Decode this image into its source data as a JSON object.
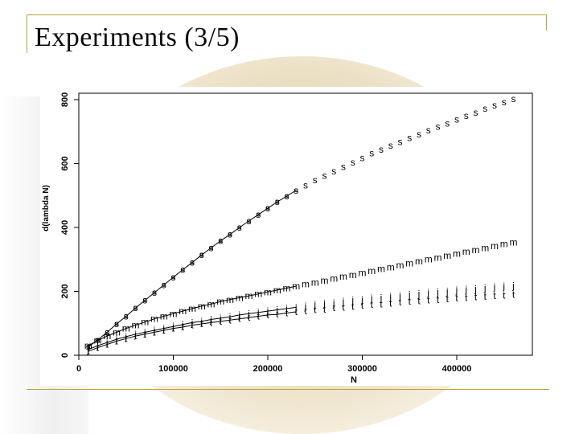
{
  "slide": {
    "title": "Experiments (3/5)"
  },
  "chart_data": {
    "type": "line",
    "xlabel": "N",
    "ylabel": "d(lambda N)",
    "xlim": [
      0,
      480000
    ],
    "ylim": [
      0,
      820
    ],
    "x_ticks": [
      "0",
      "100000",
      "200000",
      "300000",
      "400000"
    ],
    "y_ticks": [
      "0",
      "200",
      "400",
      "600",
      "800"
    ],
    "series": [
      {
        "name": "s",
        "marker_label": "s",
        "points": [
          [
            10000,
            26
          ],
          [
            20000,
            48
          ],
          [
            30000,
            72
          ],
          [
            40000,
            98
          ],
          [
            50000,
            122
          ],
          [
            60000,
            148
          ],
          [
            70000,
            172
          ],
          [
            80000,
            196
          ],
          [
            90000,
            220
          ],
          [
            100000,
            244
          ],
          [
            110000,
            268
          ],
          [
            120000,
            290
          ],
          [
            130000,
            314
          ],
          [
            140000,
            336
          ],
          [
            150000,
            358
          ],
          [
            160000,
            378
          ],
          [
            170000,
            400
          ],
          [
            180000,
            420
          ],
          [
            190000,
            440
          ],
          [
            200000,
            460
          ],
          [
            210000,
            480
          ],
          [
            220000,
            498
          ],
          [
            230000,
            516
          ],
          [
            240000,
            532
          ],
          [
            250000,
            548
          ],
          [
            260000,
            562
          ],
          [
            270000,
            576
          ],
          [
            280000,
            590
          ],
          [
            290000,
            604
          ],
          [
            300000,
            618
          ],
          [
            310000,
            632
          ],
          [
            320000,
            644
          ],
          [
            330000,
            656
          ],
          [
            340000,
            668
          ],
          [
            350000,
            680
          ],
          [
            360000,
            692
          ],
          [
            370000,
            704
          ],
          [
            380000,
            716
          ],
          [
            390000,
            726
          ],
          [
            400000,
            738
          ],
          [
            410000,
            750
          ],
          [
            420000,
            760
          ],
          [
            430000,
            772
          ],
          [
            440000,
            782
          ],
          [
            450000,
            792
          ],
          [
            460000,
            802
          ]
        ]
      },
      {
        "name": "m",
        "marker_label": "m",
        "points": [
          [
            10000,
            30
          ],
          [
            20000,
            46
          ],
          [
            30000,
            60
          ],
          [
            40000,
            72
          ],
          [
            50000,
            84
          ],
          [
            60000,
            94
          ],
          [
            70000,
            104
          ],
          [
            80000,
            114
          ],
          [
            90000,
            122
          ],
          [
            100000,
            130
          ],
          [
            110000,
            138
          ],
          [
            120000,
            146
          ],
          [
            130000,
            154
          ],
          [
            140000,
            160
          ],
          [
            150000,
            168
          ],
          [
            160000,
            174
          ],
          [
            170000,
            180
          ],
          [
            180000,
            186
          ],
          [
            190000,
            192
          ],
          [
            200000,
            198
          ],
          [
            210000,
            204
          ],
          [
            220000,
            210
          ],
          [
            230000,
            216
          ],
          [
            240000,
            222
          ],
          [
            250000,
            228
          ],
          [
            260000,
            234
          ],
          [
            270000,
            240
          ],
          [
            280000,
            246
          ],
          [
            290000,
            252
          ],
          [
            300000,
            258
          ],
          [
            310000,
            264
          ],
          [
            320000,
            270
          ],
          [
            330000,
            276
          ],
          [
            340000,
            282
          ],
          [
            350000,
            288
          ],
          [
            360000,
            294
          ],
          [
            370000,
            300
          ],
          [
            380000,
            306
          ],
          [
            390000,
            312
          ],
          [
            400000,
            318
          ],
          [
            410000,
            324
          ],
          [
            420000,
            330
          ],
          [
            430000,
            336
          ],
          [
            440000,
            342
          ],
          [
            450000,
            348
          ],
          [
            460000,
            354
          ]
        ]
      },
      {
        "name": "j",
        "marker_label": "j",
        "points": [
          [
            10000,
            18
          ],
          [
            20000,
            30
          ],
          [
            30000,
            40
          ],
          [
            40000,
            50
          ],
          [
            50000,
            58
          ],
          [
            60000,
            66
          ],
          [
            70000,
            72
          ],
          [
            80000,
            78
          ],
          [
            90000,
            84
          ],
          [
            100000,
            90
          ],
          [
            110000,
            96
          ],
          [
            120000,
            102
          ],
          [
            130000,
            106
          ],
          [
            140000,
            112
          ],
          [
            150000,
            116
          ],
          [
            160000,
            120
          ],
          [
            170000,
            126
          ],
          [
            180000,
            130
          ],
          [
            190000,
            134
          ],
          [
            200000,
            138
          ],
          [
            210000,
            142
          ],
          [
            220000,
            146
          ],
          [
            230000,
            150
          ],
          [
            240000,
            154
          ],
          [
            250000,
            158
          ],
          [
            260000,
            162
          ],
          [
            270000,
            164
          ],
          [
            280000,
            168
          ],
          [
            290000,
            172
          ],
          [
            300000,
            174
          ],
          [
            310000,
            178
          ],
          [
            320000,
            180
          ],
          [
            330000,
            184
          ],
          [
            340000,
            186
          ],
          [
            350000,
            190
          ],
          [
            360000,
            192
          ],
          [
            370000,
            196
          ],
          [
            380000,
            198
          ],
          [
            390000,
            200
          ],
          [
            400000,
            204
          ],
          [
            410000,
            206
          ],
          [
            420000,
            208
          ],
          [
            430000,
            210
          ],
          [
            440000,
            214
          ],
          [
            450000,
            216
          ],
          [
            460000,
            218
          ]
        ]
      },
      {
        "name": "t",
        "marker_label": "t",
        "points": [
          [
            10000,
            12
          ],
          [
            20000,
            24
          ],
          [
            30000,
            34
          ],
          [
            40000,
            44
          ],
          [
            50000,
            52
          ],
          [
            60000,
            60
          ],
          [
            70000,
            66
          ],
          [
            80000,
            72
          ],
          [
            90000,
            78
          ],
          [
            100000,
            84
          ],
          [
            110000,
            88
          ],
          [
            120000,
            94
          ],
          [
            130000,
            98
          ],
          [
            140000,
            102
          ],
          [
            150000,
            106
          ],
          [
            160000,
            110
          ],
          [
            170000,
            114
          ],
          [
            180000,
            118
          ],
          [
            190000,
            122
          ],
          [
            200000,
            126
          ],
          [
            210000,
            128
          ],
          [
            220000,
            132
          ],
          [
            230000,
            136
          ],
          [
            240000,
            138
          ],
          [
            250000,
            142
          ],
          [
            260000,
            144
          ],
          [
            270000,
            148
          ],
          [
            280000,
            150
          ],
          [
            290000,
            152
          ],
          [
            300000,
            156
          ],
          [
            310000,
            158
          ],
          [
            320000,
            160
          ],
          [
            330000,
            162
          ],
          [
            340000,
            166
          ],
          [
            350000,
            168
          ],
          [
            360000,
            170
          ],
          [
            370000,
            172
          ],
          [
            380000,
            174
          ],
          [
            390000,
            176
          ],
          [
            400000,
            178
          ],
          [
            410000,
            180
          ],
          [
            420000,
            182
          ],
          [
            430000,
            184
          ],
          [
            440000,
            186
          ],
          [
            450000,
            188
          ],
          [
            460000,
            190
          ]
        ]
      }
    ],
    "curves": [
      {
        "name": "s-fit",
        "x_range": [
          10000,
          230000
        ]
      },
      {
        "name": "m-fit",
        "x_range": [
          10000,
          230000
        ]
      },
      {
        "name": "j-fit",
        "x_range": [
          10000,
          230000
        ]
      },
      {
        "name": "t-fit",
        "x_range": [
          10000,
          230000
        ]
      }
    ],
    "fit_marker": "o",
    "grid": false,
    "legend": "none"
  }
}
